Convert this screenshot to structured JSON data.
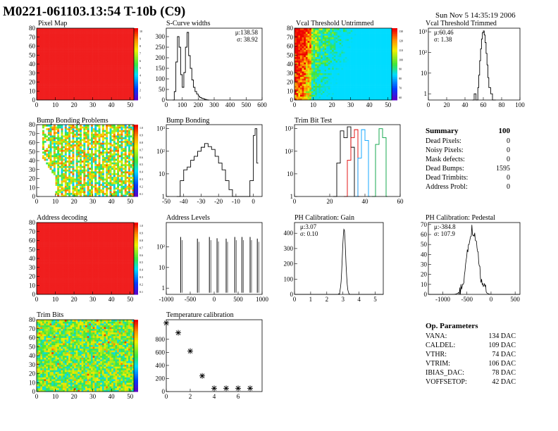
{
  "page": {
    "title": "M0221-061103.13:54 T-10b (C9)",
    "date": "Sun Nov  5 14:35:19 2006"
  },
  "chart_data": [
    {
      "id": "pixel-map",
      "type": "heatmap",
      "title": "Pixel Map",
      "xlim": [
        0,
        52
      ],
      "ylim": [
        0,
        80
      ],
      "xticks": [
        "0",
        "10",
        "20",
        "30",
        "40",
        "50"
      ],
      "yticks": [
        "0",
        "10",
        "20",
        "30",
        "40",
        "50",
        "60",
        "70",
        "80"
      ],
      "value": "uniform",
      "colorbar_ticks": [
        "10",
        "9",
        "8",
        "7",
        "6",
        "5",
        "4",
        "3",
        "2",
        "1"
      ]
    },
    {
      "id": "scurve-widths",
      "type": "histogram",
      "title": "S-Curve widths",
      "xlim": [
        0,
        600
      ],
      "ylim": [
        0,
        340
      ],
      "xticks": [
        "0",
        "100",
        "200",
        "300",
        "400",
        "500",
        "600"
      ],
      "yticks": [
        "0",
        "50",
        "100",
        "150",
        "200",
        "250",
        "300"
      ],
      "stats": [
        "μ:138.58",
        "σ: 38.92"
      ],
      "x": [
        40,
        50,
        60,
        70,
        80,
        90,
        100,
        110,
        120,
        130,
        140,
        150,
        160,
        170,
        180,
        190,
        200,
        210,
        220,
        230,
        240,
        250,
        260
      ],
      "y": [
        0,
        40,
        180,
        300,
        250,
        120,
        60,
        130,
        250,
        320,
        210,
        150,
        95,
        60,
        40,
        28,
        18,
        12,
        8,
        6,
        3,
        1,
        0
      ]
    },
    {
      "id": "vcal-untrimmed",
      "type": "heatmap",
      "title": "Vcal Threshold Untrimmed",
      "xlim": [
        0,
        52
      ],
      "ylim": [
        0,
        80
      ],
      "xticks": [
        "0",
        "10",
        "20",
        "30",
        "40",
        "50"
      ],
      "yticks": [
        "0",
        "10",
        "20",
        "30",
        "40",
        "50",
        "60",
        "70",
        "80"
      ],
      "colorbar_ticks": [
        "130",
        "120",
        "110",
        "100",
        "90",
        "80",
        "70",
        "60"
      ]
    },
    {
      "id": "vcal-trimmed",
      "type": "histogram",
      "title": "Vcal Threshold Trimmed",
      "scale": "log",
      "xlim": [
        0,
        100
      ],
      "ylim": [
        0.5,
        1500
      ],
      "xticks": [
        "0",
        "20",
        "40",
        "60",
        "80",
        "100"
      ],
      "yticks": [
        "1",
        "10",
        "10²",
        "10³"
      ],
      "stats": [
        "μ:60.46",
        "σ: 1.38"
      ],
      "x": [
        48,
        50,
        52,
        54,
        55,
        56,
        57,
        58,
        59,
        60,
        61,
        62,
        63,
        64,
        65,
        66,
        68,
        70,
        72
      ],
      "y": [
        0,
        1,
        0,
        2,
        8,
        40,
        150,
        450,
        900,
        1100,
        700,
        300,
        90,
        25,
        6,
        2,
        1,
        0,
        0
      ]
    },
    {
      "id": "bump-map",
      "type": "heatmap",
      "title": "Bump Bonding Problems",
      "xlim": [
        0,
        52
      ],
      "ylim": [
        0,
        80
      ],
      "xticks": [
        "0",
        "10",
        "20",
        "30",
        "40",
        "50"
      ],
      "yticks": [
        "0",
        "10",
        "20",
        "30",
        "40",
        "50",
        "60",
        "70",
        "80"
      ],
      "colorbar_ticks": [
        "1.0",
        "0.9",
        "0.8",
        "0.7",
        "0.6",
        "0.5",
        "0.4",
        "0.3",
        "0.2",
        "0.1"
      ]
    },
    {
      "id": "bump-bonding",
      "type": "histogram",
      "title": "Bump Bonding",
      "scale": "log",
      "xlim": [
        -50,
        5
      ],
      "ylim": [
        1,
        1500
      ],
      "xticks": [
        "-50",
        "-40",
        "-30",
        "-20",
        "-10",
        "0"
      ],
      "yticks": [
        "1",
        "10",
        "10²",
        "10³"
      ],
      "x": [
        -44,
        -42,
        -40,
        -38,
        -36,
        -34,
        -32,
        -30,
        -28,
        -26,
        -24,
        -22,
        -20,
        -18,
        -16,
        -14,
        -12,
        -10,
        -8,
        -6,
        -4,
        -2,
        0,
        1,
        2
      ],
      "y": [
        1,
        5,
        15,
        20,
        40,
        60,
        100,
        150,
        220,
        160,
        120,
        60,
        30,
        15,
        5,
        2,
        1,
        1,
        1,
        1,
        1,
        5,
        500,
        1000,
        30
      ]
    },
    {
      "id": "trim-bit-test",
      "type": "histogram",
      "title": "Trim Bit Test",
      "scale": "log",
      "xlim": [
        0,
        60
      ],
      "ylim": [
        1,
        1500
      ],
      "xticks": [
        "0",
        "20",
        "40",
        "60"
      ],
      "yticks": [
        "1",
        "10",
        "10²",
        "10³"
      ],
      "series": [
        {
          "color": "#000000",
          "x": [
            22,
            24,
            26,
            28,
            30,
            32,
            34
          ],
          "y": [
            1,
            30,
            800,
            400,
            1200,
            150,
            1
          ]
        },
        {
          "color": "#e00000",
          "x": [
            28,
            30,
            32,
            34,
            36
          ],
          "y": [
            1,
            40,
            400,
            900,
            1
          ]
        },
        {
          "color": "#00a0ff",
          "x": [
            34,
            36,
            38,
            40,
            42
          ],
          "y": [
            1,
            50,
            900,
            300,
            1
          ]
        },
        {
          "color": "#00a040",
          "x": [
            44,
            46,
            48,
            50,
            52
          ],
          "y": [
            1,
            200,
            1000,
            400,
            1
          ]
        }
      ]
    },
    {
      "id": "address-decoding",
      "type": "heatmap",
      "title": "Address decoding",
      "xlim": [
        0,
        52
      ],
      "ylim": [
        0,
        80
      ],
      "xticks": [
        "0",
        "10",
        "20",
        "30",
        "40",
        "50"
      ],
      "yticks": [
        "0",
        "10",
        "20",
        "30",
        "40",
        "50",
        "60",
        "70",
        "80"
      ],
      "value": "uniform",
      "colorbar_ticks": [
        "1.0",
        "0.9",
        "0.8",
        "0.7",
        "0.6",
        "0.5",
        "0.4",
        "0.3",
        "0.2",
        "0.1"
      ]
    },
    {
      "id": "address-levels",
      "type": "histogram",
      "title": "Address Levels",
      "scale": "log",
      "xlim": [
        -1000,
        1000
      ],
      "ylim": [
        0.5,
        1500
      ],
      "xticks": [
        "-1000",
        "-500",
        "0",
        "500",
        "1000"
      ],
      "yticks": [
        "1",
        "10",
        "10²"
      ],
      "x": [
        -700,
        -350,
        -100,
        60,
        250,
        430,
        580,
        750,
        900
      ],
      "y": [
        300,
        250,
        300,
        260,
        250,
        300,
        300,
        300,
        250
      ]
    },
    {
      "id": "ph-gain",
      "type": "histogram",
      "title": "PH Calibration: Gain",
      "xlim": [
        0,
        5.5
      ],
      "ylim": [
        0,
        470
      ],
      "xticks": [
        "0",
        "1",
        "2",
        "3",
        "4",
        "5"
      ],
      "yticks": [
        "0",
        "100",
        "200",
        "300",
        "400"
      ],
      "stats": [
        "μ:3.07",
        "σ: 0.10"
      ],
      "mean": 3.07,
      "sigma": 0.1,
      "peak": 430
    },
    {
      "id": "ph-pedestal",
      "type": "histogram",
      "title": "PH Calibration: Pedestal",
      "xlim": [
        -1300,
        600
      ],
      "ylim": [
        0,
        72
      ],
      "xticks": [
        "-1000",
        "-500",
        "0",
        "500"
      ],
      "yticks": [
        "0",
        "10",
        "20",
        "30",
        "40",
        "50",
        "60",
        "70"
      ],
      "stats": [
        "μ:-384.8",
        "σ: 107.9"
      ],
      "mean": -384.8,
      "sigma": 107.9,
      "peak": 65
    },
    {
      "id": "trim-bits",
      "type": "heatmap",
      "title": "Trim Bits",
      "xlim": [
        0,
        52
      ],
      "ylim": [
        0,
        80
      ],
      "xticks": [
        "0",
        "10",
        "20",
        "30",
        "40",
        "50"
      ],
      "yticks": [
        "0",
        "10",
        "20",
        "30",
        "40",
        "50",
        "60",
        "70",
        "80"
      ],
      "colorbar_ticks": []
    },
    {
      "id": "temperature-calibration",
      "type": "scatter",
      "title": "Temperature calibration",
      "xlim": [
        0,
        8
      ],
      "ylim": [
        0,
        1100
      ],
      "xticks": [
        "0",
        "2",
        "4",
        "6"
      ],
      "yticks": [
        "0",
        "200",
        "400",
        "600",
        "800"
      ],
      "x": [
        0,
        1,
        2,
        3,
        4,
        5,
        6,
        7
      ],
      "y": [
        1050,
        900,
        620,
        240,
        50,
        50,
        50,
        50
      ]
    }
  ],
  "summary": {
    "title": "Summary",
    "total": "100",
    "rows": [
      {
        "label": "Dead Pixels:",
        "value": "0"
      },
      {
        "label": "Noisy Pixels:",
        "value": "0"
      },
      {
        "label": "Mask defects:",
        "value": "0"
      },
      {
        "label": "Dead Bumps:",
        "value": "1595"
      },
      {
        "label": "Dead Trimbits:",
        "value": "0"
      },
      {
        "label": "Address Probl:",
        "value": "0"
      }
    ]
  },
  "op_params": {
    "title": "Op. Parameters",
    "rows": [
      {
        "label": "VANA:",
        "value": "134 DAC"
      },
      {
        "label": "CALDEL:",
        "value": "109 DAC"
      },
      {
        "label": "VTHR:",
        "value": "74 DAC"
      },
      {
        "label": "VTRIM:",
        "value": "106 DAC"
      },
      {
        "label": "IBIAS_DAC:",
        "value": "78 DAC"
      },
      {
        "label": "VOFFSETOP:",
        "value": "42 DAC"
      }
    ]
  }
}
